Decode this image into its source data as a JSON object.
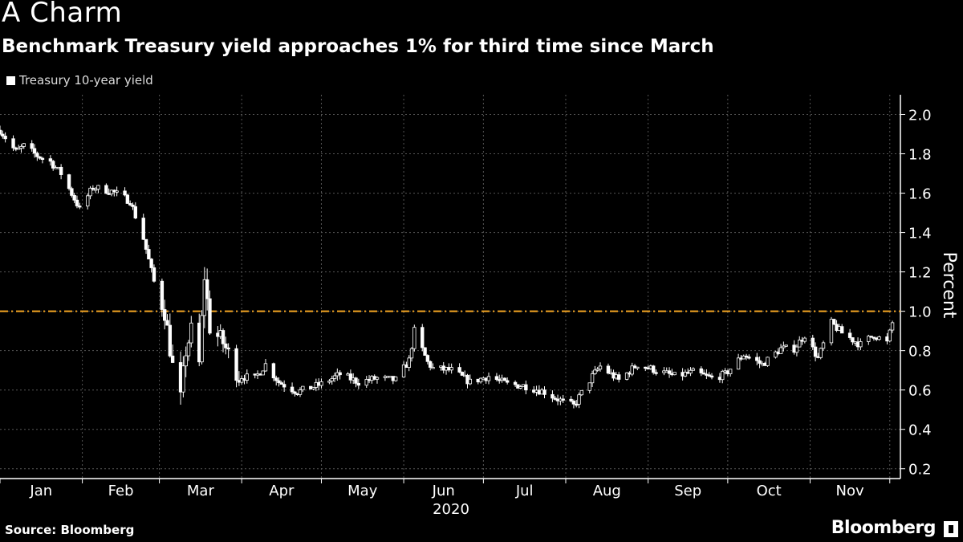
{
  "title": "A Charm",
  "subtitle": "Benchmark Treasury yield approaches 1% for third time since March",
  "footer": {
    "source": "Source: Bloomberg",
    "brand": "Bloomberg"
  },
  "colors": {
    "background": "#000000",
    "candle": "#ffffff",
    "reference_line": "#f5a623",
    "grid": "#555555"
  },
  "chart_data": {
    "type": "candlestick",
    "legend": [
      "Treasury 10-year yield"
    ],
    "legend_placement": "top-left",
    "ylabel": "Percent",
    "xlabel": "2020",
    "ylim": [
      0.15,
      2.1
    ],
    "yticks": [
      0.2,
      0.4,
      0.6,
      0.8,
      1.0,
      1.2,
      1.4,
      1.6,
      1.8,
      2.0
    ],
    "ytick_labels": [
      "0.2",
      "0.4",
      "0.6",
      "0.8",
      "1.0",
      "1.2",
      "1.4",
      "1.6",
      "1.8",
      "2.0"
    ],
    "months": [
      "Jan",
      "Feb",
      "Mar",
      "Apr",
      "May",
      "Jun",
      "Jul",
      "Aug",
      "Sep",
      "Oct",
      "Nov"
    ],
    "year_label": "2020",
    "reference_line": {
      "value": 1.0,
      "style": "dash-dot"
    },
    "grid": true,
    "axis_side": "right",
    "series": [
      {
        "name": "Treasury 10-year yield",
        "anchors": [
          [
            "2020-01-01",
            1.92
          ],
          [
            "2020-01-07",
            1.81
          ],
          [
            "2020-01-10",
            1.84
          ],
          [
            "2020-01-15",
            1.79
          ],
          [
            "2020-01-20",
            1.76
          ],
          [
            "2020-01-24",
            1.7
          ],
          [
            "2020-01-31",
            1.52
          ],
          [
            "2020-02-05",
            1.63
          ],
          [
            "2020-02-12",
            1.61
          ],
          [
            "2020-02-19",
            1.56
          ],
          [
            "2020-02-24",
            1.37
          ],
          [
            "2020-02-28",
            1.15
          ],
          [
            "2020-03-03",
            1.0
          ],
          [
            "2020-03-06",
            0.72
          ],
          [
            "2020-03-09",
            0.55
          ],
          [
            "2020-03-11",
            0.8
          ],
          [
            "2020-03-13",
            0.9
          ],
          [
            "2020-03-16",
            0.73
          ],
          [
            "2020-03-18",
            1.18
          ],
          [
            "2020-03-20",
            0.92
          ],
          [
            "2020-03-25",
            0.84
          ],
          [
            "2020-03-31",
            0.67
          ],
          [
            "2020-04-06",
            0.66
          ],
          [
            "2020-04-10",
            0.73
          ],
          [
            "2020-04-15",
            0.64
          ],
          [
            "2020-04-22",
            0.59
          ],
          [
            "2020-05-01",
            0.63
          ],
          [
            "2020-05-08",
            0.68
          ],
          [
            "2020-05-15",
            0.64
          ],
          [
            "2020-05-22",
            0.66
          ],
          [
            "2020-05-29",
            0.65
          ],
          [
            "2020-06-03",
            0.75
          ],
          [
            "2020-06-05",
            0.9
          ],
          [
            "2020-06-10",
            0.74
          ],
          [
            "2020-06-12",
            0.71
          ],
          [
            "2020-06-19",
            0.7
          ],
          [
            "2020-06-26",
            0.64
          ],
          [
            "2020-07-03",
            0.67
          ],
          [
            "2020-07-10",
            0.63
          ],
          [
            "2020-07-17",
            0.62
          ],
          [
            "2020-07-24",
            0.59
          ],
          [
            "2020-07-31",
            0.54
          ],
          [
            "2020-08-04",
            0.52
          ],
          [
            "2020-08-11",
            0.67
          ],
          [
            "2020-08-14",
            0.72
          ],
          [
            "2020-08-21",
            0.65
          ],
          [
            "2020-08-28",
            0.73
          ],
          [
            "2020-09-04",
            0.7
          ],
          [
            "2020-09-11",
            0.67
          ],
          [
            "2020-09-18",
            0.69
          ],
          [
            "2020-09-25",
            0.66
          ],
          [
            "2020-09-30",
            0.68
          ],
          [
            "2020-10-07",
            0.78
          ],
          [
            "2020-10-14",
            0.73
          ],
          [
            "2020-10-21",
            0.81
          ],
          [
            "2020-10-26",
            0.81
          ],
          [
            "2020-10-30",
            0.88
          ],
          [
            "2020-11-04",
            0.76
          ],
          [
            "2020-11-09",
            0.94
          ],
          [
            "2020-11-13",
            0.89
          ],
          [
            "2020-11-20",
            0.83
          ],
          [
            "2020-11-25",
            0.88
          ],
          [
            "2020-11-30",
            0.84
          ],
          [
            "2020-12-02",
            0.94
          ]
        ]
      }
    ]
  }
}
